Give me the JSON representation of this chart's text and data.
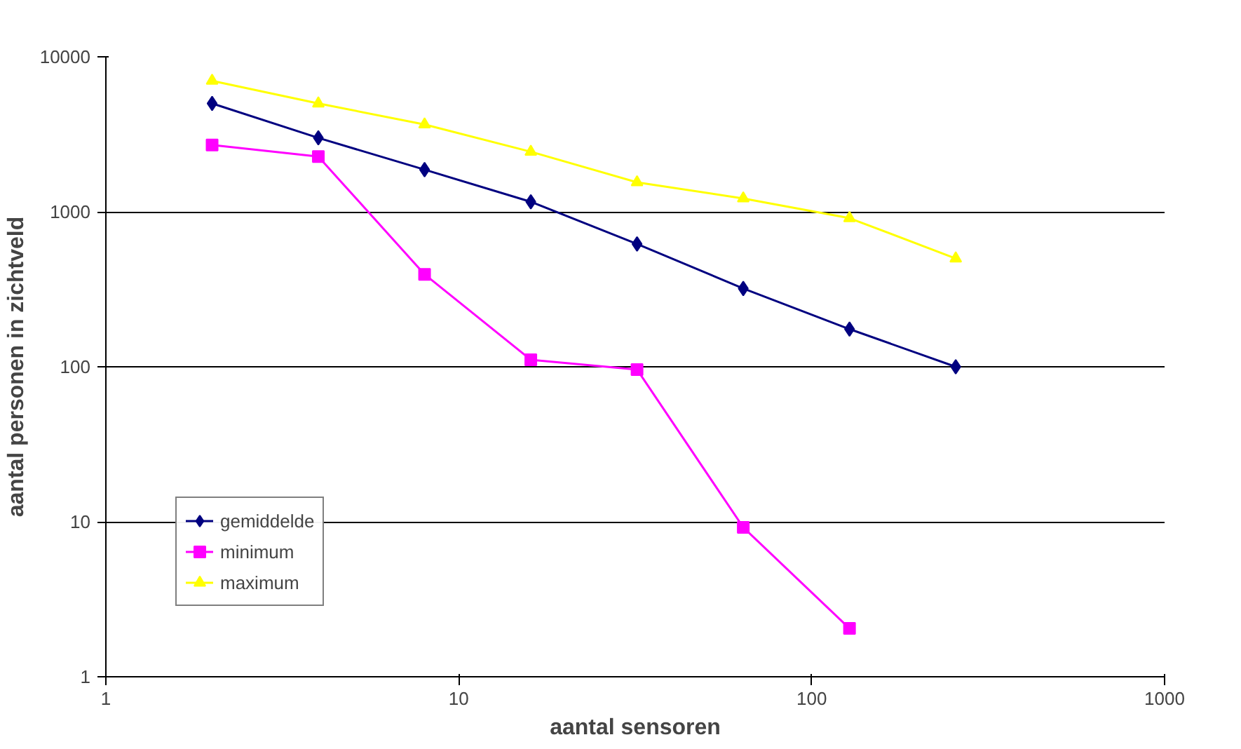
{
  "chart_data": {
    "type": "line",
    "xlabel": "aantal sensoren",
    "ylabel": "aantal personen in zichtveld",
    "log": "xy",
    "x": [
      2,
      4,
      8,
      16,
      32,
      64,
      128,
      256
    ],
    "xlim": [
      1,
      1000
    ],
    "xticks": [
      1,
      10,
      100,
      1000
    ],
    "ylim": [
      1,
      10000
    ],
    "yticks": [
      1,
      10,
      100,
      1000,
      10000
    ],
    "grid": "y",
    "legend": "bottom left",
    "series": [
      {
        "name": "gemiddelde",
        "color": "#000080",
        "marker": "diamond",
        "values": [
          5000,
          3000,
          1870,
          1160,
          620,
          320,
          175,
          100
        ]
      },
      {
        "name": "minimum",
        "color": "#ff00ff",
        "marker": "square",
        "values": [
          2700,
          2270,
          395,
          111,
          96,
          9.2,
          2.05,
          null
        ]
      },
      {
        "name": "maximum",
        "color": "#ffff00",
        "marker": "triangle",
        "values": [
          7000,
          5000,
          3660,
          2440,
          1550,
          1220,
          910,
          500
        ]
      }
    ]
  }
}
